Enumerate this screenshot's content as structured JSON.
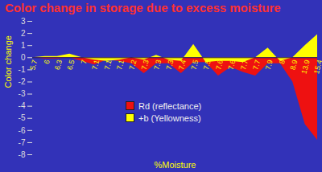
{
  "chart_data": {
    "type": "area",
    "title": "Color change in storage due to excess moisture",
    "x_label": "%Moisture",
    "y_label": "Color change",
    "categories": [
      "5.7",
      "6",
      "6.3",
      "6.5",
      "7",
      "7.1",
      "7.1",
      "7.1",
      "7.2",
      "7.3",
      "7.3",
      "7.3",
      "7.4",
      "7.5",
      "7.5",
      "7.6",
      "7.6",
      "7.7",
      "7.7",
      "7.9",
      "8",
      "8.9",
      "13.9",
      "15.4"
    ],
    "series": [
      {
        "name": "Rd (reflectance)",
        "color": "#ee1111",
        "values": [
          0,
          -0.1,
          -0.1,
          0,
          -0.3,
          -0.6,
          -0.2,
          -0.3,
          -0.5,
          -1.3,
          -0.5,
          -0.5,
          -1.3,
          -0.4,
          -0.4,
          -1.5,
          -0.8,
          -1.2,
          -1.5,
          -0.5,
          -0.5,
          -2.0,
          -5.5,
          -6.8
        ]
      },
      {
        "name": "+b (Yellowness)",
        "color": "#ffff00",
        "values": [
          0,
          0.1,
          0.1,
          0.3,
          0,
          -0.2,
          -0.3,
          -0.2,
          0,
          -0.2,
          0.2,
          -0.2,
          -0.3,
          1.1,
          -0.4,
          -0.3,
          -0.3,
          -0.4,
          0,
          0.8,
          -0.3,
          0,
          1.0,
          1.9
        ]
      }
    ],
    "ylim": [
      -8,
      3
    ],
    "yticks": [
      -8,
      -7,
      -6,
      -5,
      -4,
      -3,
      -2,
      -1,
      0,
      1,
      2,
      3
    ],
    "legend": "center",
    "grid": false
  }
}
